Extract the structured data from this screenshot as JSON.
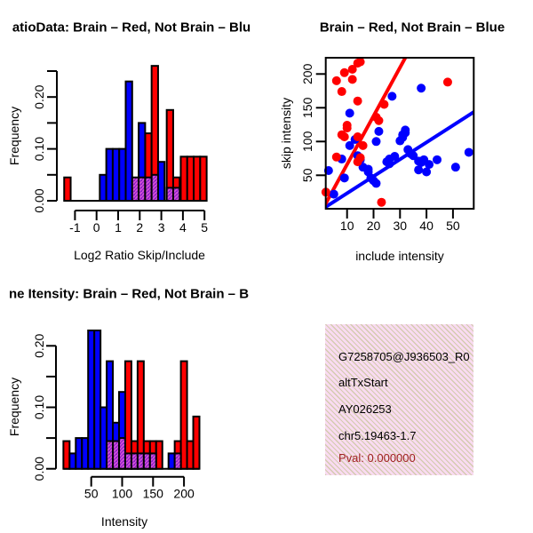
{
  "colors": {
    "red": "#FF0000",
    "blue": "#0000FF",
    "overlap_fill": "#8C1FC8",
    "overlap_hatch": "#D854D8",
    "black": "#000000",
    "pval_text": "#A02020",
    "info_bg": "#F9DBF1",
    "info_hatch": "#CDC8A5"
  },
  "panels": {
    "ratio_hist": {
      "title": "atioData: Brain – Red, Not Brain – Blu",
      "xlabel": "Log2 Ratio Skip/Include",
      "ylabel": "Frequency"
    },
    "scatter": {
      "title": "Brain – Red, Not Brain – Blue",
      "xlabel": "include intensity",
      "ylabel": "skip intensity"
    },
    "intensity_hist": {
      "title": "ne Itensity: Brain – Red, Not Brain – B",
      "xlabel": "Intensity",
      "ylabel": "Frequency"
    },
    "info_box": {
      "lines": [
        "G7258705@J936503_R0",
        "altTxStart",
        "AY026253",
        "chr5.19463-1.7",
        "Pval: 0.000000"
      ]
    }
  },
  "chart_data": [
    {
      "type": "bar",
      "panel": "ratio_hist",
      "title": "atioData: Brain – Red, Not Brain – Blu",
      "xlabel": "Log2 Ratio Skip/Include",
      "ylabel": "Frequency",
      "xlim": [
        -1.6,
        5.2
      ],
      "ylim": [
        0,
        0.26
      ],
      "bin_width": 0.3,
      "baseline": [
        -1.5,
        5.1
      ],
      "x_ticks": [
        -1,
        0,
        1,
        2,
        3,
        4,
        5
      ],
      "x_tick_labels": [
        "-1",
        "0",
        "1",
        "2",
        "3",
        "4",
        "5"
      ],
      "y_ticks": [
        0,
        0.05,
        0.1,
        0.15,
        0.2,
        0.25
      ],
      "y_tick_labels": [
        "0.00",
        "",
        "0.10",
        "",
        "0.20",
        ""
      ],
      "series": [
        {
          "name": "brain_red",
          "color_key": "red",
          "bars": [
            {
              "x": -1.5,
              "h": 0.045
            },
            {
              "x": 2.25,
              "h": 0.13
            },
            {
              "x": 2.55,
              "h": 0.26
            },
            {
              "x": 3.25,
              "h": 0.175
            },
            {
              "x": 3.55,
              "h": 0.045
            },
            {
              "x": 3.9,
              "h": 0.085
            },
            {
              "x": 4.2,
              "h": 0.085
            },
            {
              "x": 4.5,
              "h": 0.085
            },
            {
              "x": 4.8,
              "h": 0.085
            }
          ]
        },
        {
          "name": "not_brain_blue",
          "color_key": "blue",
          "bars": [
            {
              "x": 0.15,
              "h": 0.05
            },
            {
              "x": 0.45,
              "h": 0.1
            },
            {
              "x": 0.75,
              "h": 0.1
            },
            {
              "x": 1.05,
              "h": 0.1
            },
            {
              "x": 1.35,
              "h": 0.23
            },
            {
              "x": 1.95,
              "h": 0.15
            },
            {
              "x": 2.85,
              "h": 0.075
            }
          ]
        },
        {
          "name": "overlap",
          "color_key": "overlap_fill",
          "bars": [
            {
              "x": 1.65,
              "h": 0.045
            },
            {
              "x": 1.95,
              "h": 0.045
            },
            {
              "x": 2.25,
              "h": 0.045
            },
            {
              "x": 2.55,
              "h": 0.05
            },
            {
              "x": 3.25,
              "h": 0.025
            },
            {
              "x": 3.55,
              "h": 0.025
            }
          ]
        }
      ]
    },
    {
      "type": "scatter",
      "panel": "scatter",
      "title": "Brain – Red, Not Brain – Blue",
      "xlabel": "include intensity",
      "ylabel": "skip intensity",
      "xlim": [
        2,
        58
      ],
      "ylim": [
        0,
        224
      ],
      "x_ticks": [
        10,
        20,
        30,
        40,
        50
      ],
      "x_tick_labels": [
        "10",
        "20",
        "30",
        "40",
        "50"
      ],
      "y_ticks": [
        50,
        100,
        150,
        200
      ],
      "y_tick_labels": [
        "50",
        "100",
        "150",
        "200"
      ],
      "series": [
        {
          "name": "brain_red",
          "color_key": "red",
          "fit_line": {
            "x1": 1.5,
            "y1": 5,
            "x2": 32,
            "y2": 224
          },
          "points": [
            [
              6,
              190
            ],
            [
              9,
              202
            ],
            [
              12,
              207
            ],
            [
              14,
              216
            ],
            [
              15,
              218
            ],
            [
              8,
              174
            ],
            [
              12,
              192
            ],
            [
              14,
              160
            ],
            [
              24,
              155
            ],
            [
              21,
              136
            ],
            [
              22,
              131
            ],
            [
              10,
              124
            ],
            [
              10,
              120
            ],
            [
              8,
              110
            ],
            [
              9,
              107
            ],
            [
              14,
              107
            ],
            [
              16,
              94
            ],
            [
              15,
              76
            ],
            [
              14,
              70
            ],
            [
              6,
              77
            ],
            [
              48,
              188
            ],
            [
              23,
              10
            ],
            [
              2,
              25
            ]
          ]
        },
        {
          "name": "not_brain_blue",
          "color_key": "blue",
          "fit_line": {
            "x1": 1.5,
            "y1": 2,
            "x2": 58,
            "y2": 144
          },
          "points": [
            [
              11,
              142
            ],
            [
              38,
              179
            ],
            [
              27,
              167
            ],
            [
              22,
              115
            ],
            [
              21,
              100
            ],
            [
              13,
              103
            ],
            [
              11,
              94
            ],
            [
              8,
              74
            ],
            [
              3,
              57
            ],
            [
              5,
              22
            ],
            [
              9,
              46
            ],
            [
              16,
              62
            ],
            [
              18,
              59
            ],
            [
              18,
              55
            ],
            [
              14,
              79
            ],
            [
              15,
              73
            ],
            [
              19,
              46
            ],
            [
              20,
              42
            ],
            [
              21,
              38
            ],
            [
              25,
              70
            ],
            [
              26,
              67
            ],
            [
              26,
              74
            ],
            [
              28,
              78
            ],
            [
              30,
              101
            ],
            [
              31,
              106
            ],
            [
              31,
              110
            ],
            [
              32,
              113
            ],
            [
              32,
              117
            ],
            [
              33,
              88
            ],
            [
              34,
              82
            ],
            [
              35,
              79
            ],
            [
              37,
              71
            ],
            [
              38,
              69
            ],
            [
              39,
              73
            ],
            [
              37,
              58
            ],
            [
              40,
              55
            ],
            [
              41,
              66
            ],
            [
              44,
              73
            ],
            [
              51,
              62
            ],
            [
              56,
              84
            ]
          ]
        }
      ]
    },
    {
      "type": "bar",
      "panel": "intensity_hist",
      "title": "ne Itensity: Brain – Red, Not Brain – B",
      "xlabel": "Intensity",
      "ylabel": "Frequency",
      "xlim": [
        0,
        230
      ],
      "ylim": [
        0,
        0.23
      ],
      "bin_width": 10,
      "baseline": [
        5,
        225
      ],
      "x_ticks": [
        50,
        100,
        150,
        200
      ],
      "x_tick_labels": [
        "50",
        "100",
        "150",
        "200"
      ],
      "y_ticks": [
        0,
        0.05,
        0.1,
        0.15,
        0.2
      ],
      "y_tick_labels": [
        "0.00",
        "",
        "0.10",
        "",
        "0.20"
      ],
      "series": [
        {
          "name": "brain_red",
          "color_key": "red",
          "bars": [
            {
              "x": 5,
              "h": 0.045
            },
            {
              "x": 105,
              "h": 0.175
            },
            {
              "x": 115,
              "h": 0.045
            },
            {
              "x": 125,
              "h": 0.175
            },
            {
              "x": 135,
              "h": 0.045
            },
            {
              "x": 145,
              "h": 0.045
            },
            {
              "x": 155,
              "h": 0.045
            },
            {
              "x": 185,
              "h": 0.045
            },
            {
              "x": 195,
              "h": 0.175
            },
            {
              "x": 205,
              "h": 0.045
            },
            {
              "x": 215,
              "h": 0.085
            }
          ]
        },
        {
          "name": "not_brain_blue",
          "color_key": "blue",
          "bars": [
            {
              "x": 15,
              "h": 0.025
            },
            {
              "x": 25,
              "h": 0.05
            },
            {
              "x": 35,
              "h": 0.05
            },
            {
              "x": 45,
              "h": 0.225
            },
            {
              "x": 55,
              "h": 0.225
            },
            {
              "x": 65,
              "h": 0.1
            },
            {
              "x": 75,
              "h": 0.175
            },
            {
              "x": 85,
              "h": 0.075
            },
            {
              "x": 95,
              "h": 0.125
            },
            {
              "x": 175,
              "h": 0.025
            }
          ]
        },
        {
          "name": "overlap",
          "color_key": "overlap_fill",
          "bars": [
            {
              "x": 75,
              "h": 0.045
            },
            {
              "x": 85,
              "h": 0.045
            },
            {
              "x": 95,
              "h": 0.05
            },
            {
              "x": 105,
              "h": 0.025
            },
            {
              "x": 115,
              "h": 0.025
            },
            {
              "x": 125,
              "h": 0.025
            },
            {
              "x": 135,
              "h": 0.025
            },
            {
              "x": 145,
              "h": 0.025
            },
            {
              "x": 185,
              "h": 0.025
            }
          ]
        }
      ]
    }
  ]
}
